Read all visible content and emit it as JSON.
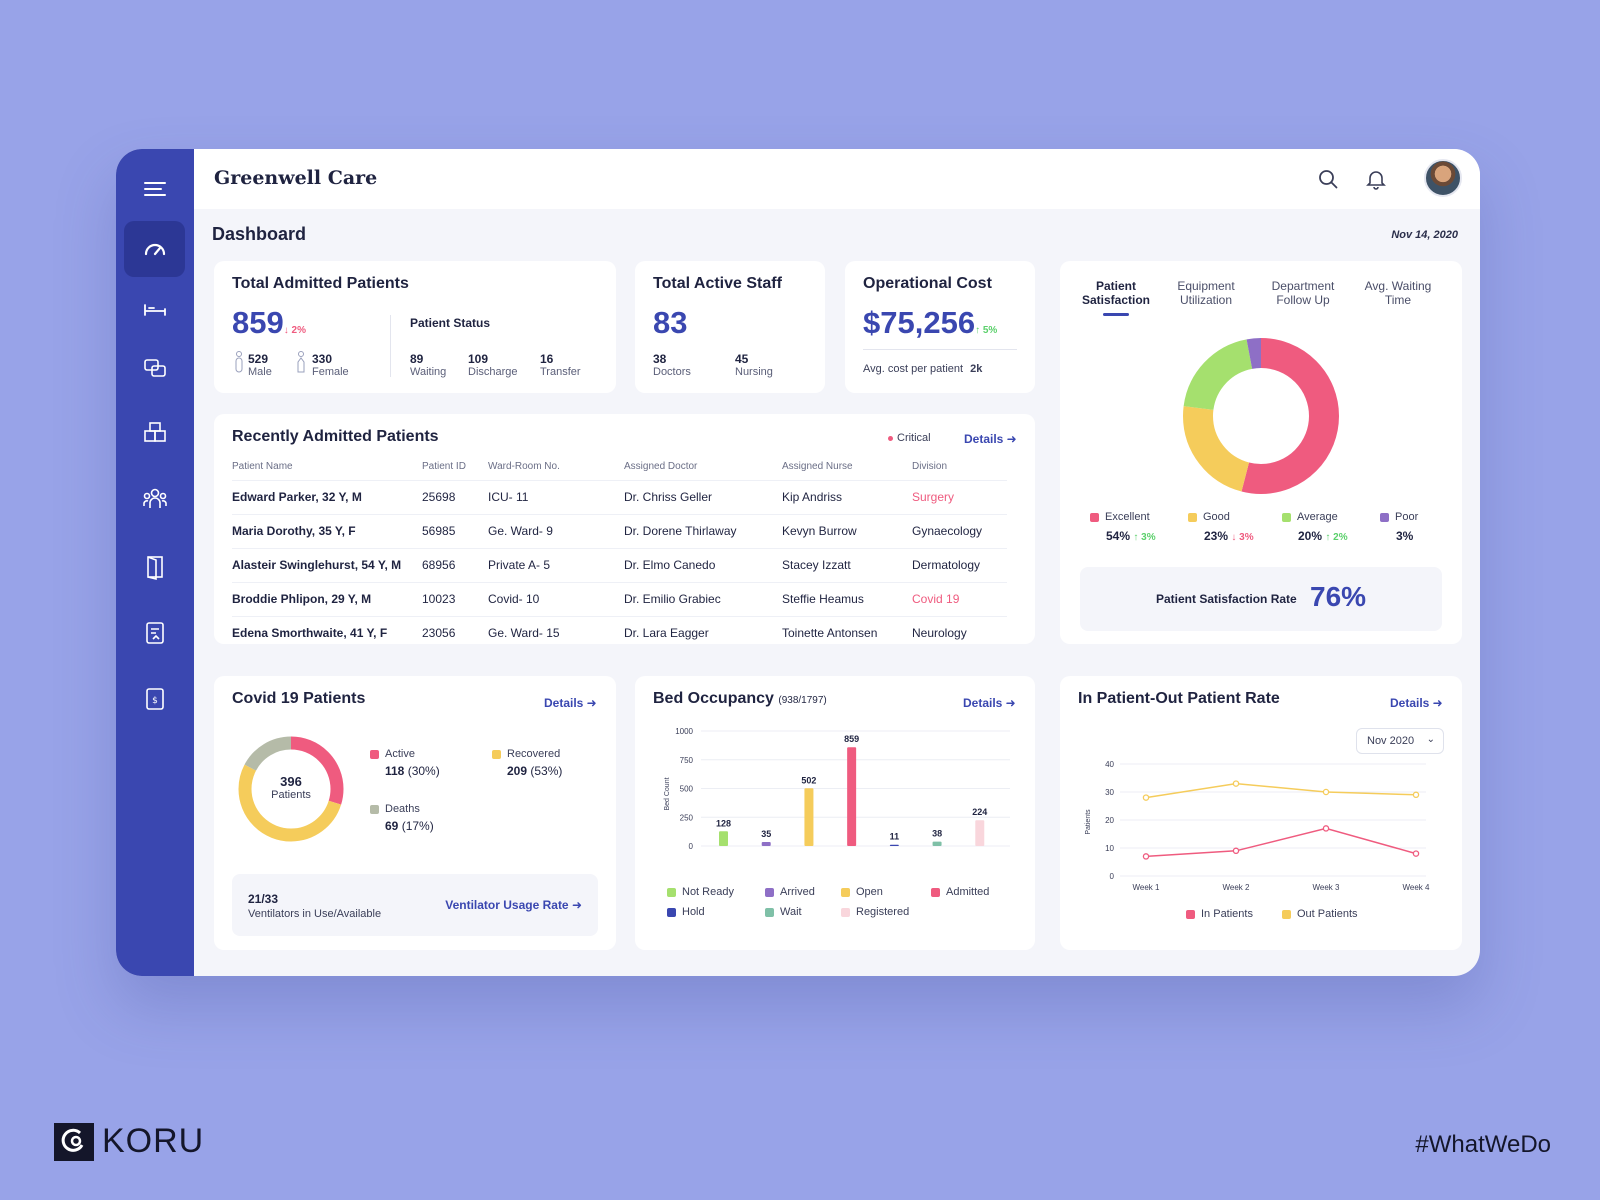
{
  "app": {
    "title": "Greenwell Care",
    "page_title": "Dashboard",
    "date": "Nov 14, 2020"
  },
  "colors": {
    "brand": "#3a47b0",
    "red": "#ef5b7f",
    "yellow": "#f5cc5b",
    "green": "#a5e06e",
    "purple": "#8e6fc6",
    "teal": "#7fc0a7",
    "gray": "#b5bba8",
    "navy": "#3a47b0",
    "pink_light": "#f9d6dc"
  },
  "sidebar": {
    "items": [
      "menu-icon",
      "dashboard-icon",
      "bed-icon",
      "chat-icon",
      "inventory-icon",
      "staff-icon",
      "door-icon",
      "report-icon",
      "billing-icon"
    ]
  },
  "admitted": {
    "title": "Total Admitted Patients",
    "value": "859",
    "delta": "↓ 2%",
    "male_count": "529",
    "male_label": "Male",
    "female_count": "330",
    "female_label": "Female",
    "status_title": "Patient Status",
    "waiting": "89",
    "waiting_label": "Waiting",
    "discharge": "109",
    "discharge_label": "Discharge",
    "transfer": "16",
    "transfer_label": "Transfer"
  },
  "staff": {
    "title": "Total Active Staff",
    "value": "83",
    "doctors": "38",
    "doctors_label": "Doctors",
    "nursing": "45",
    "nursing_label": "Nursing"
  },
  "cost": {
    "title": "Operational Cost",
    "value": "$75,256",
    "delta": "↑ 5%",
    "avg_label": "Avg. cost per patient",
    "avg_value": "2k"
  },
  "recent": {
    "title": "Recently Admitted Patients",
    "critical": "Critical",
    "details": "Details ➜",
    "headers": [
      "Patient Name",
      "Patient ID",
      "Ward-Room No.",
      "Assigned Doctor",
      "Assigned Nurse",
      "Division"
    ],
    "rows": [
      [
        "Edward Parker, 32 Y, M",
        "25698",
        "ICU- 11",
        "Dr. Chriss Geller",
        "Kip Andriss",
        "Surgery"
      ],
      [
        "Maria Dorothy, 35 Y, F",
        "56985",
        "Ge. Ward- 9",
        "Dr. Dorene Thirlaway",
        "Kevyn Burrow",
        "Gynaecology"
      ],
      [
        "Alasteir Swinglehurst, 54 Y, M",
        "68956",
        "Private A- 5",
        "Dr. Elmo Canedo",
        "Stacey Izzatt",
        "Dermatology"
      ],
      [
        "Broddie Phlipon, 29 Y, M",
        "10023",
        "Covid- 10",
        "Dr. Emilio Grabiec",
        "Steffie Heamus",
        "Covid 19"
      ],
      [
        "Edena Smorthwaite, 41 Y, F",
        "23056",
        "Ge. Ward- 15",
        "Dr. Lara Eagger",
        "Toinette Antonsen",
        "Neurology"
      ]
    ]
  },
  "satisfaction": {
    "tabs": [
      "Patient Satisfaction",
      "Equipment Utilization",
      "Department Follow Up",
      "Avg. Waiting Time"
    ],
    "legend": [
      {
        "label": "Excellent",
        "value": "54%",
        "delta": "↑ 3%",
        "dir": "up"
      },
      {
        "label": "Good",
        "value": "23%",
        "delta": "↓ 3%",
        "dir": "down"
      },
      {
        "label": "Average",
        "value": "20%",
        "delta": "↑ 2%",
        "dir": "up"
      },
      {
        "label": "Poor",
        "value": "3%",
        "delta": "",
        "dir": ""
      }
    ],
    "rate_label": "Patient Satisfaction Rate",
    "rate_value": "76%"
  },
  "covid": {
    "title": "Covid 19 Patients",
    "details": "Details ➜",
    "center_value": "396",
    "center_label": "Patients",
    "active_label": "Active",
    "active_value": "118",
    "active_pct": "(30%)",
    "recovered_label": "Recovered",
    "recovered_value": "209",
    "recovered_pct": "(53%)",
    "deaths_label": "Deaths",
    "deaths_value": "69",
    "deaths_pct": "(17%)",
    "vent_value": "21/33",
    "vent_label": "Ventilators in Use/Available",
    "vent_link": "Ventilator Usage Rate ➜"
  },
  "bed": {
    "title": "Bed Occupancy",
    "subtitle": "(938/1797)",
    "details": "Details ➜"
  },
  "inout": {
    "title": "In Patient-Out Patient Rate",
    "details": "Details ➜",
    "month": "Nov 2020"
  },
  "chart_data": [
    {
      "type": "pie",
      "title": "Patient Satisfaction",
      "categories": [
        "Excellent",
        "Good",
        "Average",
        "Poor"
      ],
      "values": [
        54,
        23,
        20,
        3
      ]
    },
    {
      "type": "pie",
      "title": "Covid 19 Patients",
      "categories": [
        "Active",
        "Recovered",
        "Deaths"
      ],
      "values": [
        118,
        209,
        69
      ]
    },
    {
      "type": "bar",
      "title": "Bed Occupancy",
      "ylabel": "Bed Count",
      "ylim": [
        0,
        1000
      ],
      "yticks": [
        0,
        250,
        500,
        750,
        1000
      ],
      "categories": [
        "Not Ready",
        "Arrived",
        "Open",
        "Admitted",
        "Hold",
        "Wait",
        "Registered"
      ],
      "values": [
        128,
        35,
        502,
        859,
        11,
        38,
        224
      ]
    },
    {
      "type": "line",
      "title": "In Patient-Out Patient Rate",
      "ylabel": "Patients",
      "ylim": [
        0,
        40
      ],
      "yticks": [
        0,
        10,
        20,
        30,
        40
      ],
      "x": [
        "Week 1",
        "Week 2",
        "Week 3",
        "Week 4"
      ],
      "series": [
        {
          "name": "In Patients",
          "values": [
            7,
            9,
            17,
            8
          ]
        },
        {
          "name": "Out Patients",
          "values": [
            28,
            33,
            30,
            29
          ]
        }
      ]
    }
  ],
  "watermark": {
    "brand": "KORU",
    "tag": "#WhatWeDo"
  }
}
